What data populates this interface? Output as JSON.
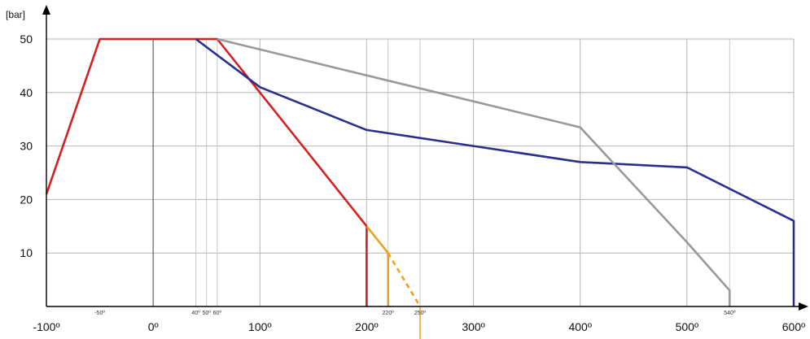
{
  "chart_data": {
    "type": "line",
    "ylabel": "[bar]",
    "xlim": [
      -100,
      600
    ],
    "ylim": [
      0,
      50
    ],
    "grid": true,
    "x_tick_labels": [
      "-100º",
      "0º",
      "100º",
      "200º",
      "300º",
      "400º",
      "500º",
      "600º"
    ],
    "x_tick_values": [
      -100,
      0,
      100,
      200,
      300,
      400,
      500,
      600
    ],
    "y_tick_labels": [
      "10",
      "20",
      "30",
      "40",
      "50"
    ],
    "y_tick_values": [
      10,
      20,
      30,
      40,
      50
    ],
    "annotation_labels": [
      {
        "text": "-50º",
        "x": -50
      },
      {
        "text": "40º",
        "x": 40
      },
      {
        "text": "50º",
        "x": 50
      },
      {
        "text": "60º",
        "x": 60
      },
      {
        "text": "220º",
        "x": 220
      },
      {
        "text": "250º",
        "x": 250
      },
      {
        "text": "540º",
        "x": 540
      }
    ],
    "extra_gridlines_x": [
      40,
      50,
      60,
      200,
      220,
      250,
      540
    ],
    "series": [
      {
        "color": "#d42020",
        "style": "solid",
        "points": [
          [
            -100,
            21
          ],
          [
            -50,
            50
          ],
          [
            60,
            50
          ],
          [
            100,
            40
          ],
          [
            200,
            15
          ],
          [
            200,
            0
          ]
        ]
      },
      {
        "color": "#f0a020",
        "style": "solid",
        "points": [
          [
            200,
            15
          ],
          [
            220,
            10
          ],
          [
            220,
            0
          ]
        ]
      },
      {
        "color": "#f0a020",
        "style": "dashed",
        "points": [
          [
            220,
            10
          ],
          [
            250,
            0
          ]
        ]
      },
      {
        "color": "#2a2f8a",
        "style": "solid",
        "points": [
          [
            40,
            50
          ],
          [
            100,
            41
          ],
          [
            200,
            33
          ],
          [
            300,
            30
          ],
          [
            400,
            27
          ],
          [
            500,
            26
          ],
          [
            600,
            16
          ],
          [
            600,
            0
          ]
        ]
      },
      {
        "color": "#999999",
        "style": "solid",
        "points": [
          [
            60,
            50
          ],
          [
            400,
            33.5
          ],
          [
            500,
            12
          ],
          [
            540,
            3
          ],
          [
            540,
            0
          ]
        ]
      }
    ],
    "highlight_tick": {
      "x": 250,
      "color": "#f0a020"
    }
  }
}
